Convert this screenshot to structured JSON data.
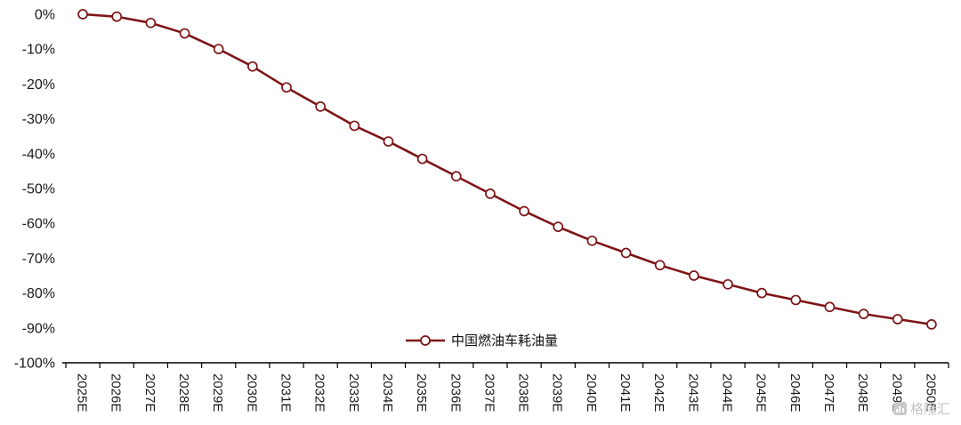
{
  "chart_data": {
    "type": "line",
    "title": "",
    "categories": [
      "2025E",
      "2026E",
      "2027E",
      "2028E",
      "2029E",
      "2030E",
      "2031E",
      "2032E",
      "2033E",
      "2034E",
      "2035E",
      "2036E",
      "2037E",
      "2038E",
      "2039E",
      "2040E",
      "2041E",
      "2042E",
      "2043E",
      "2044E",
      "2045E",
      "2046E",
      "2047E",
      "2048E",
      "2049E",
      "2050E"
    ],
    "series": [
      {
        "name": "中国燃油车耗油量",
        "values": [
          0,
          -0.7,
          -2.5,
          -5.5,
          -10,
          -15,
          -21,
          -26.5,
          -32,
          -36.5,
          -41.5,
          -46.5,
          -51.5,
          -56.5,
          -61,
          -65,
          -68.5,
          -72,
          -75,
          -77.5,
          -80,
          -82,
          -84,
          -86,
          -87.5,
          -89
        ]
      }
    ],
    "ylim": [
      -100,
      0
    ],
    "ytick_step": 10,
    "ytick_labels": [
      "0%",
      "-10%",
      "-20%",
      "-30%",
      "-40%",
      "-50%",
      "-60%",
      "-70%",
      "-80%",
      "-90%",
      "-100%"
    ],
    "grid": false,
    "legend_position": "bottom-center",
    "line_color": "#7E1517",
    "marker_fill": "#FFFFFF",
    "axis_color": "#000000"
  },
  "legend": {
    "label": "中国燃油车耗油量"
  },
  "watermark": {
    "text": "格隆汇"
  }
}
